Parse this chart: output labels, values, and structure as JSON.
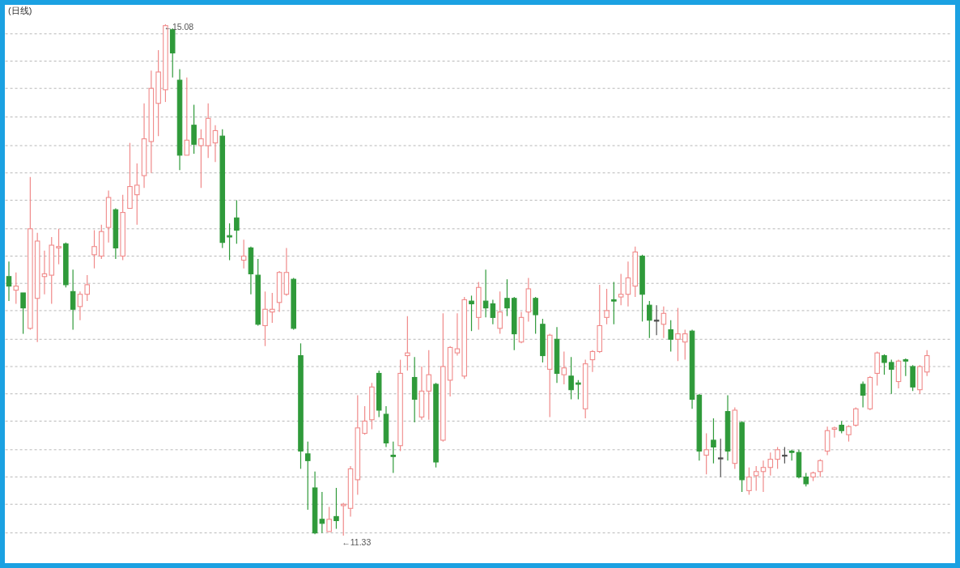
{
  "chart_data": {
    "type": "candlestick",
    "title": "(日线)",
    "categories": [
      null,
      null,
      null,
      null,
      null,
      null,
      null,
      null,
      null,
      null,
      null,
      null,
      null,
      null,
      null,
      null,
      null,
      null,
      null,
      null,
      null,
      null,
      null,
      null,
      null,
      null,
      null,
      null,
      null,
      null,
      null,
      null,
      null,
      null,
      null,
      null,
      null,
      null,
      null,
      null,
      null,
      null,
      null,
      null,
      null,
      null,
      null,
      null,
      null,
      null,
      null,
      null,
      null,
      null,
      null,
      null,
      null,
      null,
      null,
      null,
      null,
      null,
      null,
      null,
      null,
      null,
      null,
      null,
      null,
      null,
      null,
      null,
      null,
      null,
      null,
      null,
      null,
      null,
      null,
      null,
      null,
      null,
      null,
      null,
      null,
      null,
      null,
      null,
      null,
      null,
      null,
      null,
      null,
      null,
      null,
      null,
      null,
      null,
      null,
      null,
      null,
      null,
      null,
      null,
      null,
      null,
      null,
      null,
      null,
      null,
      null,
      null,
      null,
      null,
      null,
      null,
      null,
      null,
      null,
      null,
      null,
      null,
      null,
      null,
      null,
      null,
      null,
      null,
      null,
      null
    ],
    "ohlc": [
      [
        13.23,
        13.34,
        13.05,
        13.16
      ],
      [
        13.13,
        13.26,
        13.03,
        13.16
      ],
      [
        13.11,
        13.11,
        12.81,
        13.0
      ],
      [
        12.85,
        13.96,
        12.84,
        13.58
      ],
      [
        13.07,
        13.55,
        12.75,
        13.49
      ],
      [
        13.23,
        13.42,
        13.1,
        13.25
      ],
      [
        13.24,
        13.52,
        13.03,
        13.46
      ],
      [
        13.44,
        13.58,
        13.32,
        13.45
      ],
      [
        13.47,
        13.48,
        13.15,
        13.17
      ],
      [
        13.12,
        13.28,
        12.84,
        12.99
      ],
      [
        13.01,
        13.12,
        12.91,
        13.1
      ],
      [
        13.1,
        13.24,
        13.05,
        13.17
      ],
      [
        13.39,
        13.57,
        13.29,
        13.45
      ],
      [
        13.38,
        13.61,
        13.36,
        13.56
      ],
      [
        13.59,
        13.86,
        13.48,
        13.81
      ],
      [
        13.72,
        13.73,
        13.36,
        13.44
      ],
      [
        13.38,
        13.83,
        13.35,
        13.7
      ],
      [
        13.73,
        14.21,
        13.73,
        13.89
      ],
      [
        13.83,
        14.06,
        13.61,
        13.9
      ],
      [
        13.97,
        14.5,
        13.88,
        14.24
      ],
      [
        14.22,
        14.74,
        13.99,
        14.61
      ],
      [
        14.5,
        14.89,
        14.26,
        14.73
      ],
      [
        14.6,
        15.08,
        14.51,
        15.07
      ],
      [
        15.04,
        15.05,
        14.69,
        14.87
      ],
      [
        14.67,
        14.75,
        14.01,
        14.12
      ],
      [
        14.12,
        14.69,
        14.12,
        14.23
      ],
      [
        14.34,
        14.49,
        14.13,
        14.2
      ],
      [
        14.19,
        14.31,
        13.88,
        14.24
      ],
      [
        14.19,
        14.5,
        14.1,
        14.39
      ],
      [
        14.21,
        14.34,
        14.07,
        14.3
      ],
      [
        14.26,
        14.31,
        13.44,
        13.48
      ],
      [
        13.53,
        13.62,
        13.35,
        13.52
      ],
      [
        13.66,
        13.79,
        13.47,
        13.57
      ],
      [
        13.35,
        13.5,
        13.29,
        13.38
      ],
      [
        13.44,
        13.45,
        13.1,
        13.25
      ],
      [
        13.24,
        13.36,
        12.87,
        12.88
      ],
      [
        12.87,
        13.12,
        12.72,
        12.99
      ],
      [
        12.97,
        13.11,
        12.89,
        12.99
      ],
      [
        13.04,
        13.27,
        12.97,
        13.26
      ],
      [
        13.1,
        13.44,
        13.09,
        13.26
      ],
      [
        13.21,
        13.22,
        12.84,
        12.85
      ],
      [
        12.65,
        12.74,
        11.82,
        11.95
      ],
      [
        11.93,
        12.02,
        11.52,
        11.88
      ],
      [
        11.68,
        11.8,
        11.34,
        11.35
      ],
      [
        11.45,
        11.65,
        11.35,
        11.42
      ],
      [
        11.36,
        11.54,
        11.36,
        11.45
      ],
      [
        11.47,
        11.68,
        11.38,
        11.44
      ],
      [
        11.55,
        11.57,
        11.33,
        11.56
      ],
      [
        11.53,
        11.84,
        11.47,
        11.82
      ],
      [
        11.74,
        12.36,
        11.63,
        12.12
      ],
      [
        12.08,
        12.28,
        12.07,
        12.17
      ],
      [
        12.18,
        12.45,
        12.11,
        12.42
      ],
      [
        12.52,
        12.54,
        12.2,
        12.25
      ],
      [
        12.22,
        12.28,
        11.98,
        12.01
      ],
      [
        11.92,
        12.02,
        11.79,
        11.91
      ],
      [
        11.99,
        12.62,
        11.95,
        12.52
      ],
      [
        12.65,
        12.94,
        12.54,
        12.67
      ],
      [
        12.49,
        12.64,
        12.16,
        12.33
      ],
      [
        12.2,
        12.57,
        12.18,
        12.39
      ],
      [
        12.39,
        12.69,
        12.18,
        12.51
      ],
      [
        12.44,
        12.45,
        11.83,
        11.87
      ],
      [
        12.03,
        12.96,
        12.02,
        12.57
      ],
      [
        12.47,
        12.72,
        12.35,
        12.71
      ],
      [
        12.67,
        12.96,
        12.65,
        12.7
      ],
      [
        12.5,
        13.08,
        12.48,
        13.06
      ],
      [
        13.05,
        13.09,
        12.83,
        13.03
      ],
      [
        12.93,
        13.19,
        12.84,
        13.15
      ],
      [
        13.05,
        13.28,
        12.93,
        13.0
      ],
      [
        13.03,
        13.06,
        12.88,
        12.93
      ],
      [
        12.85,
        13.12,
        12.81,
        12.97
      ],
      [
        13.07,
        13.21,
        12.94,
        13.0
      ],
      [
        13.07,
        13.08,
        12.69,
        12.81
      ],
      [
        12.75,
        12.97,
        12.74,
        12.93
      ],
      [
        12.97,
        13.22,
        12.9,
        13.14
      ],
      [
        13.07,
        13.08,
        12.81,
        12.95
      ],
      [
        12.88,
        12.92,
        12.6,
        12.65
      ],
      [
        12.55,
        12.81,
        12.2,
        12.8
      ],
      [
        12.77,
        12.86,
        12.45,
        12.52
      ],
      [
        12.51,
        12.68,
        12.44,
        12.56
      ],
      [
        12.5,
        12.64,
        12.33,
        12.4
      ],
      [
        12.45,
        12.47,
        12.33,
        12.44
      ],
      [
        12.26,
        12.62,
        12.19,
        12.59
      ],
      [
        12.62,
        12.69,
        12.53,
        12.68
      ],
      [
        12.68,
        13.17,
        12.67,
        12.87
      ],
      [
        12.93,
        13.14,
        12.88,
        12.98
      ],
      [
        13.06,
        13.19,
        12.88,
        13.05
      ],
      [
        13.08,
        13.25,
        13.02,
        13.1
      ],
      [
        13.1,
        13.34,
        13.01,
        13.22
      ],
      [
        13.16,
        13.45,
        13.08,
        13.41
      ],
      [
        13.38,
        13.39,
        12.9,
        13.1
      ],
      [
        13.02,
        13.05,
        12.78,
        12.91
      ],
      [
        12.91,
        13.02,
        12.8,
        12.91
      ],
      [
        12.88,
        13.01,
        12.78,
        12.96
      ],
      [
        12.84,
        12.91,
        12.68,
        12.77
      ],
      [
        12.77,
        13.0,
        12.61,
        12.81
      ],
      [
        12.75,
        12.84,
        12.62,
        12.81
      ],
      [
        12.83,
        12.84,
        12.26,
        12.33
      ],
      [
        12.36,
        12.37,
        11.88,
        11.95
      ],
      [
        11.92,
        12.08,
        11.78,
        11.96
      ],
      [
        12.03,
        12.19,
        11.86,
        11.98
      ],
      [
        11.9,
        12.04,
        11.76,
        11.9
      ],
      [
        12.24,
        12.36,
        11.88,
        11.95
      ],
      [
        11.86,
        12.27,
        11.82,
        12.25
      ],
      [
        12.16,
        12.17,
        11.65,
        11.74
      ],
      [
        11.66,
        11.83,
        11.63,
        11.76
      ],
      [
        11.77,
        11.84,
        11.66,
        11.8
      ],
      [
        11.8,
        11.88,
        11.65,
        11.83
      ],
      [
        11.83,
        11.94,
        11.77,
        11.89
      ],
      [
        11.89,
        11.98,
        11.82,
        11.96
      ],
      [
        11.92,
        11.98,
        11.86,
        11.92
      ],
      [
        11.95,
        11.96,
        11.88,
        11.94
      ],
      [
        11.94,
        11.96,
        11.75,
        11.76
      ],
      [
        11.76,
        11.79,
        11.69,
        11.71
      ],
      [
        11.76,
        11.8,
        11.73,
        11.79
      ],
      [
        11.8,
        11.89,
        11.76,
        11.88
      ],
      [
        11.95,
        12.13,
        11.92,
        12.1
      ],
      [
        12.11,
        12.13,
        12.05,
        12.12
      ],
      [
        12.14,
        12.17,
        12.08,
        12.1
      ],
      [
        12.07,
        12.14,
        12.02,
        12.13
      ],
      [
        12.14,
        12.27,
        12.13,
        12.26
      ],
      [
        12.44,
        12.46,
        12.27,
        12.36
      ],
      [
        12.26,
        12.5,
        12.25,
        12.49
      ],
      [
        12.52,
        12.68,
        12.43,
        12.67
      ],
      [
        12.65,
        12.66,
        12.51,
        12.6
      ],
      [
        12.6,
        12.62,
        12.37,
        12.55
      ],
      [
        12.46,
        12.62,
        12.41,
        12.61
      ],
      [
        12.62,
        12.63,
        12.5,
        12.61
      ],
      [
        12.57,
        12.58,
        12.39,
        12.42
      ],
      [
        12.4,
        12.58,
        12.37,
        12.57
      ],
      [
        12.53,
        12.69,
        12.5,
        12.65
      ]
    ],
    "colors": [
      "#2f9a3a",
      "#f08a8a",
      "#2f9a3a",
      "#f08a8a",
      "#f08a8a",
      "#f08a8a",
      "#f08a8a",
      "#f08a8a",
      "#2f9a3a",
      "#2f9a3a",
      "#f08a8a",
      "#f08a8a",
      "#f08a8a",
      "#f08a8a",
      "#f08a8a",
      "#2f9a3a",
      "#f08a8a",
      "#f08a8a",
      "#f08a8a",
      "#f08a8a",
      "#f08a8a",
      "#f08a8a",
      "#f08a8a",
      "#2f9a3a",
      "#2f9a3a",
      "#f08a8a",
      "#2f9a3a",
      "#f08a8a",
      "#f08a8a",
      "#f08a8a",
      "#2f9a3a",
      "#2f9a3a",
      "#2f9a3a",
      "#f08a8a",
      "#2f9a3a",
      "#2f9a3a",
      "#f08a8a",
      "#f08a8a",
      "#f08a8a",
      "#f08a8a",
      "#2f9a3a",
      "#2f9a3a",
      "#2f9a3a",
      "#2f9a3a",
      "#2f9a3a",
      "#f08a8a",
      "#2f9a3a",
      "#f08a8a",
      "#f08a8a",
      "#f08a8a",
      "#f08a8a",
      "#f08a8a",
      "#2f9a3a",
      "#2f9a3a",
      "#2f9a3a",
      "#f08a8a",
      "#f08a8a",
      "#2f9a3a",
      "#f08a8a",
      "#f08a8a",
      "#2f9a3a",
      "#f08a8a",
      "#f08a8a",
      "#f08a8a",
      "#f08a8a",
      "#2f9a3a",
      "#f08a8a",
      "#2f9a3a",
      "#2f9a3a",
      "#f08a8a",
      "#2f9a3a",
      "#2f9a3a",
      "#f08a8a",
      "#f08a8a",
      "#2f9a3a",
      "#2f9a3a",
      "#f08a8a",
      "#2f9a3a",
      "#f08a8a",
      "#2f9a3a",
      "#2f9a3a",
      "#f08a8a",
      "#f08a8a",
      "#f08a8a",
      "#f08a8a",
      "#2f9a3a",
      "#f08a8a",
      "#f08a8a",
      "#f08a8a",
      "#2f9a3a",
      "#2f9a3a",
      "#505050",
      "#f08a8a",
      "#2f9a3a",
      "#f08a8a",
      "#f08a8a",
      "#2f9a3a",
      "#2f9a3a",
      "#f08a8a",
      "#2f9a3a",
      "#505050",
      "#2f9a3a",
      "#f08a8a",
      "#2f9a3a",
      "#f08a8a",
      "#f08a8a",
      "#f08a8a",
      "#f08a8a",
      "#f08a8a",
      "#505050",
      "#2f9a3a",
      "#2f9a3a",
      "#2f9a3a",
      "#f08a8a",
      "#f08a8a",
      "#f08a8a",
      "#f08a8a",
      "#2f9a3a",
      "#f08a8a",
      "#f08a8a",
      "#2f9a3a",
      "#f08a8a",
      "#f08a8a",
      "#2f9a3a",
      "#2f9a3a",
      "#f08a8a",
      "#2f9a3a",
      "#2f9a3a",
      "#f08a8a",
      "#f08a8a"
    ],
    "yticks": [
      {
        "value": 15.01,
        "label": null
      },
      {
        "value": 14.81,
        "label": null
      },
      {
        "value": 14.61,
        "label": null
      },
      {
        "value": 14.4,
        "label": null
      },
      {
        "value": 14.19,
        "label": null
      },
      {
        "value": 13.99,
        "label": null
      },
      {
        "value": 13.79,
        "label": null
      },
      {
        "value": 13.58,
        "label": null
      },
      {
        "value": 13.38,
        "label": null
      },
      {
        "value": 13.18,
        "label": null
      },
      {
        "value": 12.98,
        "label": null
      },
      {
        "value": 12.77,
        "label": null
      },
      {
        "value": 12.57,
        "label": null
      },
      {
        "value": 12.37,
        "label": null
      },
      {
        "value": 12.17,
        "label": null
      },
      {
        "value": 11.96,
        "label": null
      },
      {
        "value": 11.76,
        "label": null
      },
      {
        "value": 11.56,
        "label": null
      },
      {
        "value": 11.35,
        "label": null
      }
    ],
    "grid": "y",
    "annotations": [
      "←15.08",
      "←11.33"
    ]
  }
}
